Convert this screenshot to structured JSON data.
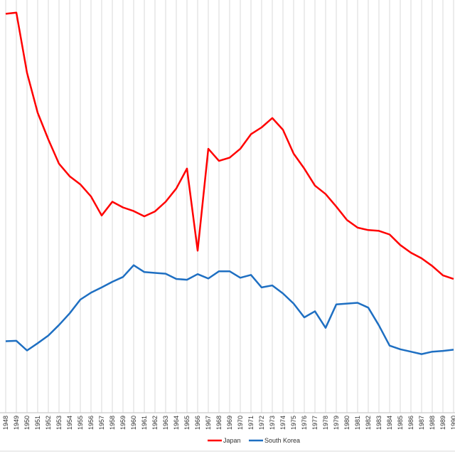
{
  "chart_data": {
    "type": "line",
    "title": "",
    "xlabel": "",
    "ylabel": "",
    "grid": {
      "vertical": true,
      "horizontal": false
    },
    "legend_position": "bottom",
    "x": [
      1948,
      1949,
      1950,
      1951,
      1952,
      1953,
      1954,
      1955,
      1956,
      1957,
      1958,
      1959,
      1960,
      1961,
      1962,
      1963,
      1964,
      1965,
      1966,
      1967,
      1968,
      1969,
      1970,
      1971,
      1972,
      1973,
      1974,
      1975,
      1976,
      1977,
      1978,
      1979,
      1980,
      1981,
      1982,
      1983,
      1984,
      1985,
      1986,
      1987,
      1988,
      1989,
      1990
    ],
    "x_labels": [
      "1948",
      "1949",
      "1950",
      "1951",
      "1952",
      "1953",
      "1954",
      "1955",
      "1956",
      "1957",
      "1958",
      "1959",
      "1960",
      "1961",
      "1962",
      "1963",
      "1964",
      "1965",
      "1966",
      "1967",
      "1968",
      "1969",
      "1970",
      "1971",
      "1972",
      "1973",
      "1974",
      "1975",
      "1976",
      "1977",
      "1978",
      "1979",
      "1980",
      "1981",
      "1982",
      "1983",
      "1984",
      "1985",
      "1986",
      "1987",
      "1988",
      "1989",
      "1990"
    ],
    "series": [
      {
        "name": "Japan",
        "color": "#ff0000",
        "values": [
          98.7,
          99.0,
          84.1,
          74.2,
          67.6,
          61.6,
          58.5,
          56.5,
          53.5,
          48.8,
          52.2,
          50.8,
          49.9,
          48.6,
          49.8,
          52.2,
          55.5,
          60.4,
          40.1,
          65.3,
          62.3,
          63.1,
          65.3,
          68.9,
          70.6,
          72.9,
          70.0,
          64.1,
          60.4,
          56.2,
          54.1,
          51.0,
          47.7,
          45.8,
          45.2,
          45.0,
          44.1,
          41.5,
          39.6,
          38.2,
          36.3,
          34.0,
          33.1
        ]
      },
      {
        "name": "South Korea",
        "color": "#1e6fc2",
        "values": [
          17.7,
          17.8,
          15.4,
          17.2,
          19.1,
          21.7,
          24.6,
          28.0,
          29.7,
          31.0,
          32.4,
          33.6,
          36.5,
          34.8,
          34.6,
          34.4,
          33.1,
          32.9,
          34.3,
          33.2,
          35.0,
          35.0,
          33.4,
          34.1,
          31.0,
          31.5,
          29.5,
          27.0,
          23.6,
          25.1,
          21.0,
          26.8,
          27.0,
          27.2,
          26.0,
          21.6,
          16.6,
          15.7,
          15.1,
          14.5,
          15.1,
          15.3,
          15.6
        ]
      }
    ]
  }
}
